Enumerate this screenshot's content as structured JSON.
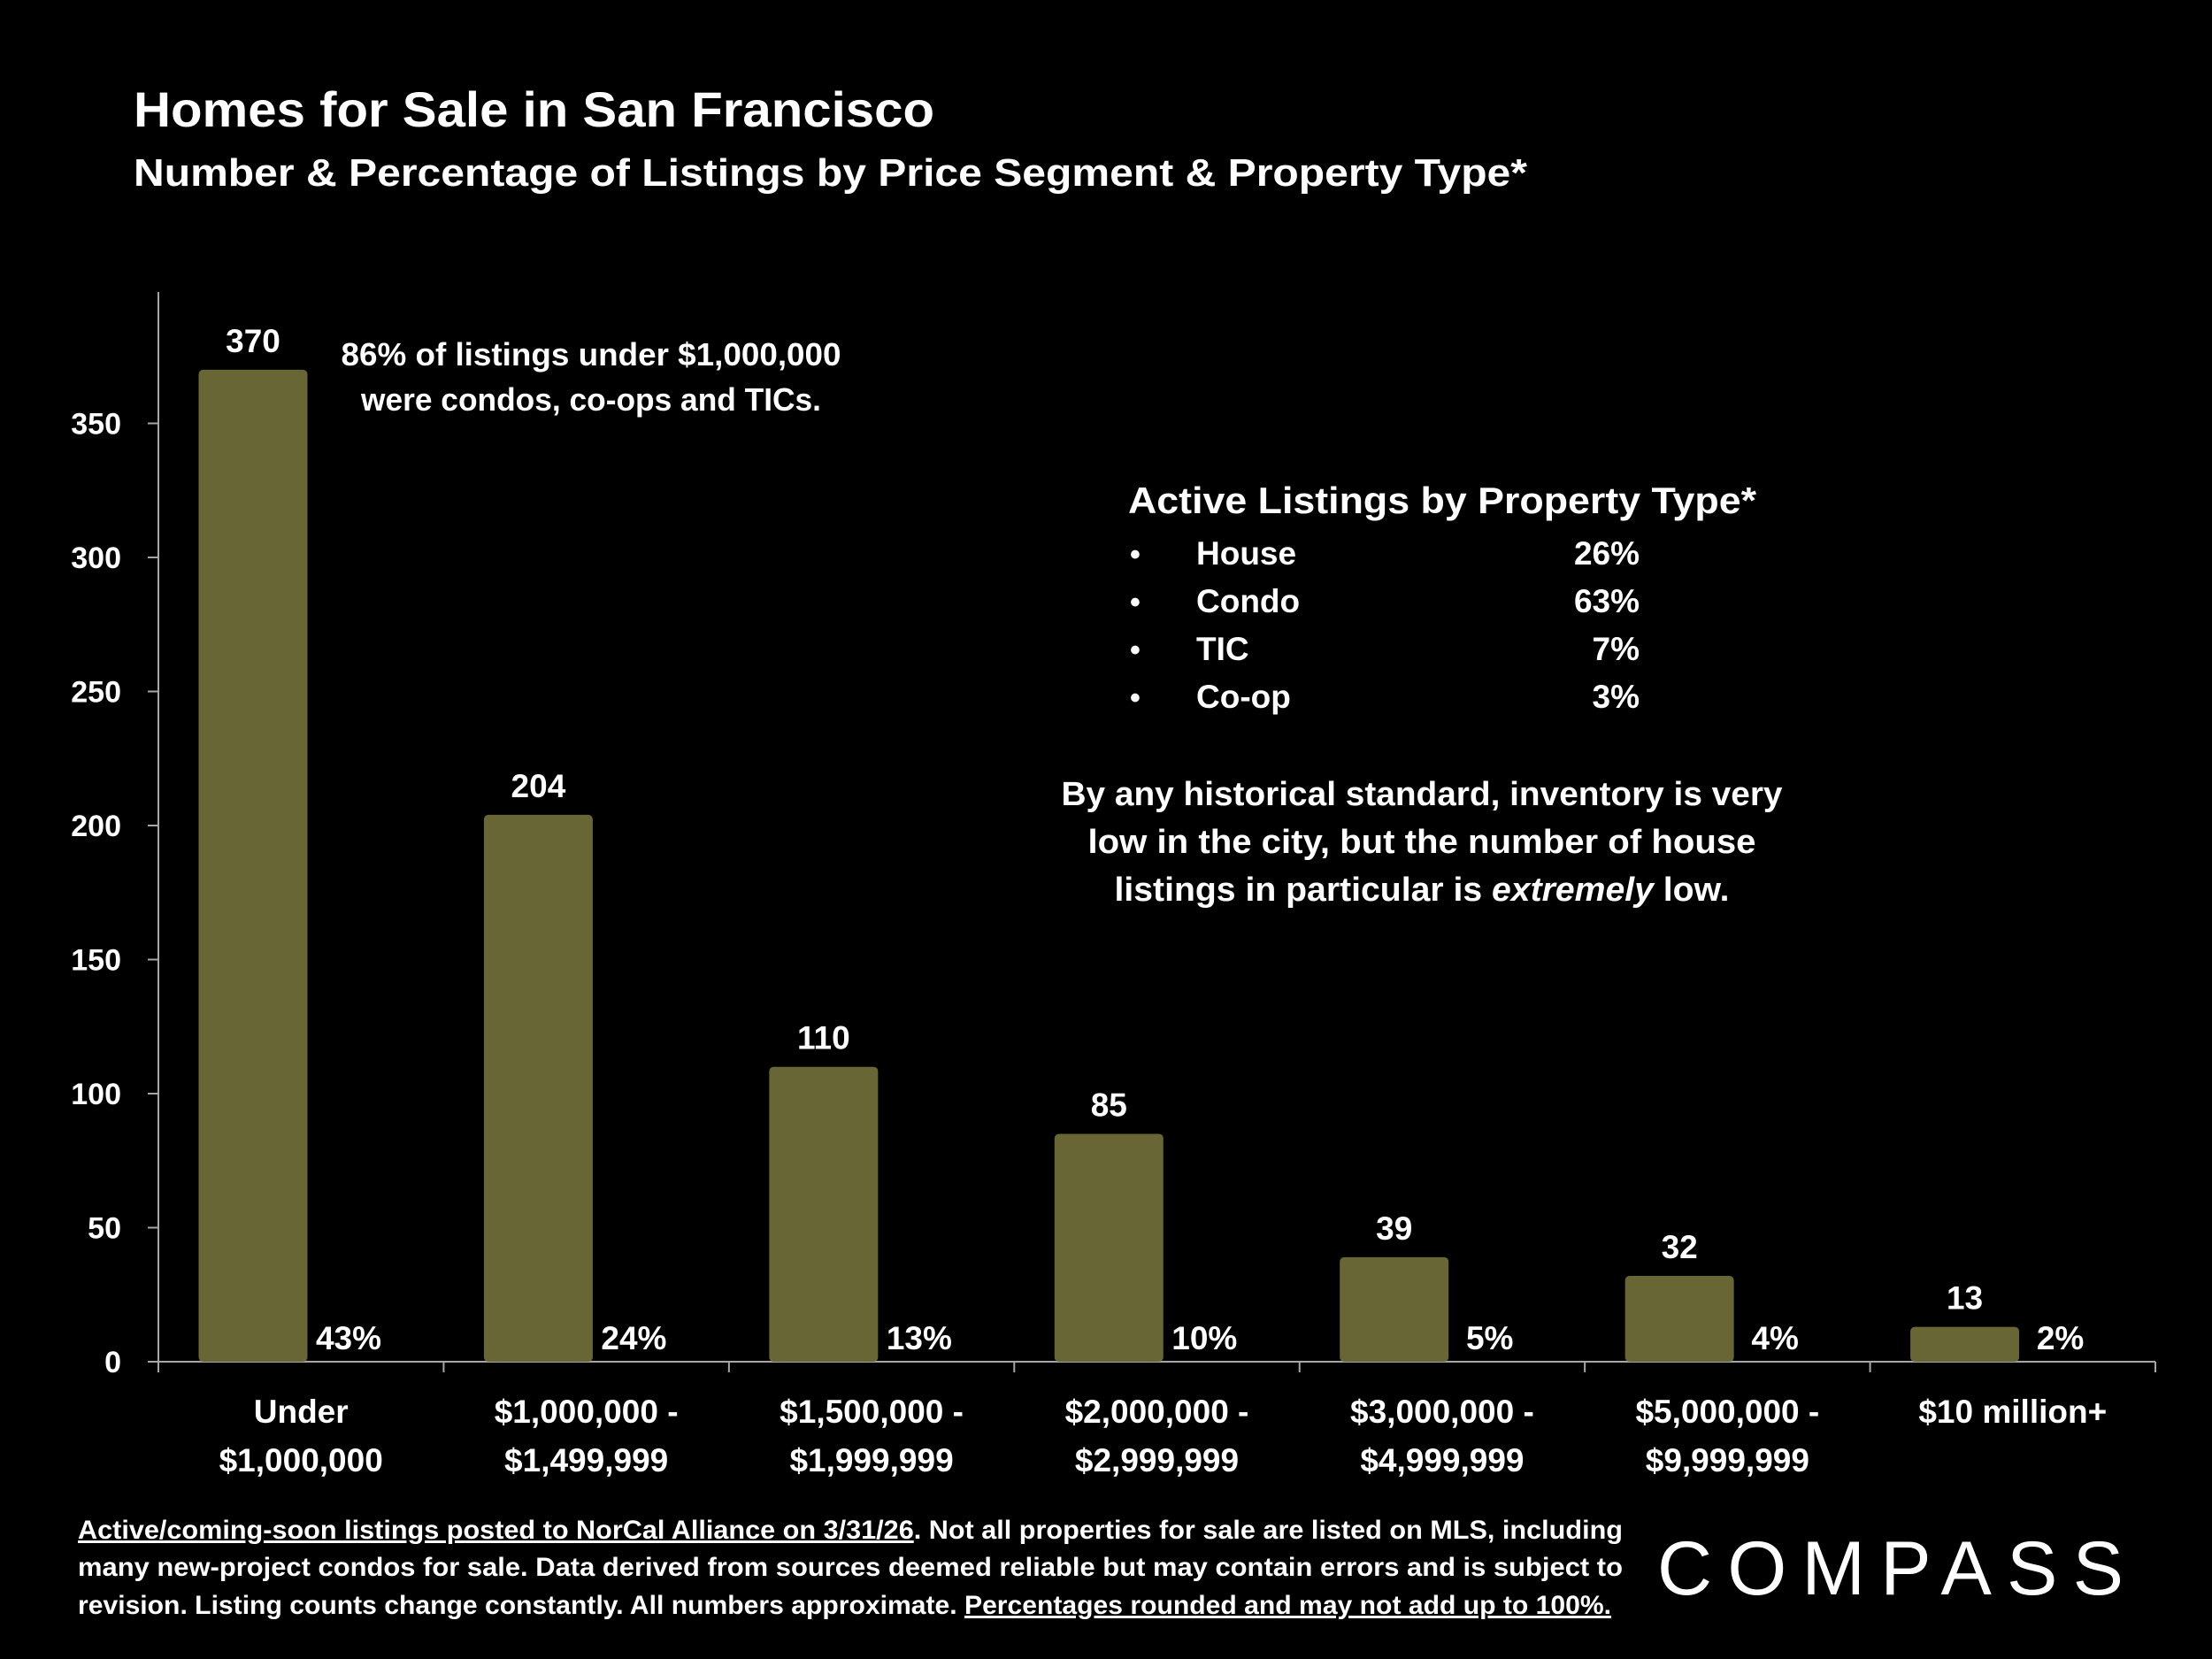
{
  "title": "Homes for Sale in San Francisco",
  "subtitle": "Number & Percentage of Listings by Price Segment & Property Type*",
  "annotation": [
    "86% of listings under $1,000,000",
    "were condos, co-ops and TICs."
  ],
  "property_type_box": {
    "heading": "Active Listings by Property Type*",
    "bullet": "•",
    "items": [
      {
        "label": "House",
        "value": "26%"
      },
      {
        "label": "Condo",
        "value": "63%"
      },
      {
        "label": "TIC",
        "value": "7%"
      },
      {
        "label": "Co-op",
        "value": "3%"
      }
    ]
  },
  "commentary": {
    "line1": "By any historical standard, inventory is very",
    "line2": "low in the city, but the number of house",
    "line3_before": "listings in particular is ",
    "line3_italic": "extremely",
    "line3_after": " low."
  },
  "footnote": {
    "line1_underlined": "Active/coming-soon listings posted to NorCal Alliance on 3/31/26",
    "line1_rest": ". Not all properties for sale are listed on MLS, including",
    "line2": "many new-project condos for sale. Data derived from sources deemed reliable but may contain errors and is subject to",
    "line3_plain": "revision. Listing counts change constantly. All numbers approximate. ",
    "line3_underlined": "Percentages rounded and may not add up to 100%."
  },
  "logo": "COMPASS",
  "colors": {
    "background": "#000000",
    "bar": "#676634",
    "text": "#ffffff",
    "axis": "#a6a6a6"
  },
  "chart_data": {
    "type": "bar",
    "categories": [
      [
        "Under",
        "$1,000,000"
      ],
      [
        "$1,000,000 -",
        "$1,499,999"
      ],
      [
        "$1,500,000 -",
        "$1,999,999"
      ],
      [
        "$2,000,000 -",
        "$2,999,999"
      ],
      [
        "$3,000,000 -",
        "$4,999,999"
      ],
      [
        "$5,000,000 -",
        "$9,999,999"
      ],
      [
        "$10 million+"
      ]
    ],
    "values": [
      370,
      204,
      110,
      85,
      39,
      32,
      13
    ],
    "percent_labels": [
      "43%",
      "24%",
      "13%",
      "10%",
      "5%",
      "4%",
      "2%"
    ],
    "ylim": [
      0,
      400
    ],
    "yticks": [
      0,
      50,
      100,
      150,
      200,
      250,
      300,
      350
    ],
    "xlabel": "",
    "ylabel": "",
    "grid": false,
    "legend": "none"
  }
}
